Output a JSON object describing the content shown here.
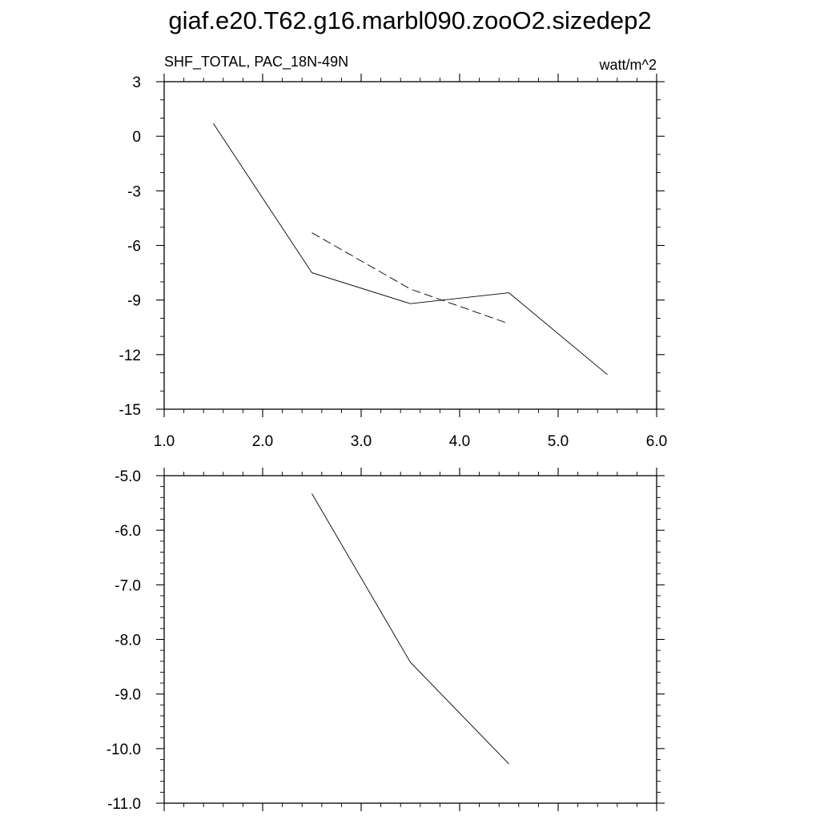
{
  "title": "giaf.e20.T62.g16.marbl090.zooO2.sizedep2",
  "chart_data": [
    {
      "type": "line",
      "left_label": "SHF_TOTAL, PAC_18N-49N",
      "right_label": "watt/m^2",
      "xlim": [
        1.0,
        6.0
      ],
      "ylim": [
        -15,
        3
      ],
      "x_ticks": [
        1.0,
        2.0,
        3.0,
        4.0,
        5.0,
        6.0
      ],
      "x_tick_labels": [
        "1.0",
        "2.0",
        "3.0",
        "4.0",
        "5.0",
        "6.0"
      ],
      "y_ticks": [
        3,
        0,
        -3,
        -6,
        -9,
        -12,
        -15
      ],
      "y_tick_labels": [
        "3",
        "0",
        "-3",
        "-6",
        "-9",
        "-12",
        "-15"
      ],
      "x_minor_step": 0.2,
      "y_minor_step": 1,
      "series": [
        {
          "style": "solid",
          "color": "#000000",
          "x": [
            1.5,
            2.5,
            3.5,
            4.5,
            5.5
          ],
          "y": [
            0.7,
            -7.5,
            -9.2,
            -8.6,
            -13.1
          ]
        },
        {
          "style": "dashed",
          "color": "#000000",
          "x": [
            2.5,
            3.5,
            4.5
          ],
          "y": [
            -5.3,
            -8.4,
            -10.3
          ]
        }
      ]
    },
    {
      "type": "line",
      "xlim": [
        1.0,
        6.0
      ],
      "ylim": [
        -11.0,
        -5.0
      ],
      "x_ticks": [
        1.0,
        2.0,
        3.0,
        4.0,
        5.0,
        6.0
      ],
      "y_ticks": [
        -5.0,
        -6.0,
        -7.0,
        -8.0,
        -9.0,
        -10.0,
        -11.0
      ],
      "y_tick_labels": [
        "-5.0",
        "-6.0",
        "-7.0",
        "-8.0",
        "-9.0",
        "-10.0",
        "-11.0"
      ],
      "x_minor_step": 0.2,
      "y_minor_step": 0.2,
      "series": [
        {
          "style": "solid",
          "color": "#000000",
          "x": [
            2.5,
            3.5,
            4.5
          ],
          "y": [
            -5.33,
            -8.42,
            -10.28
          ]
        }
      ]
    }
  ]
}
